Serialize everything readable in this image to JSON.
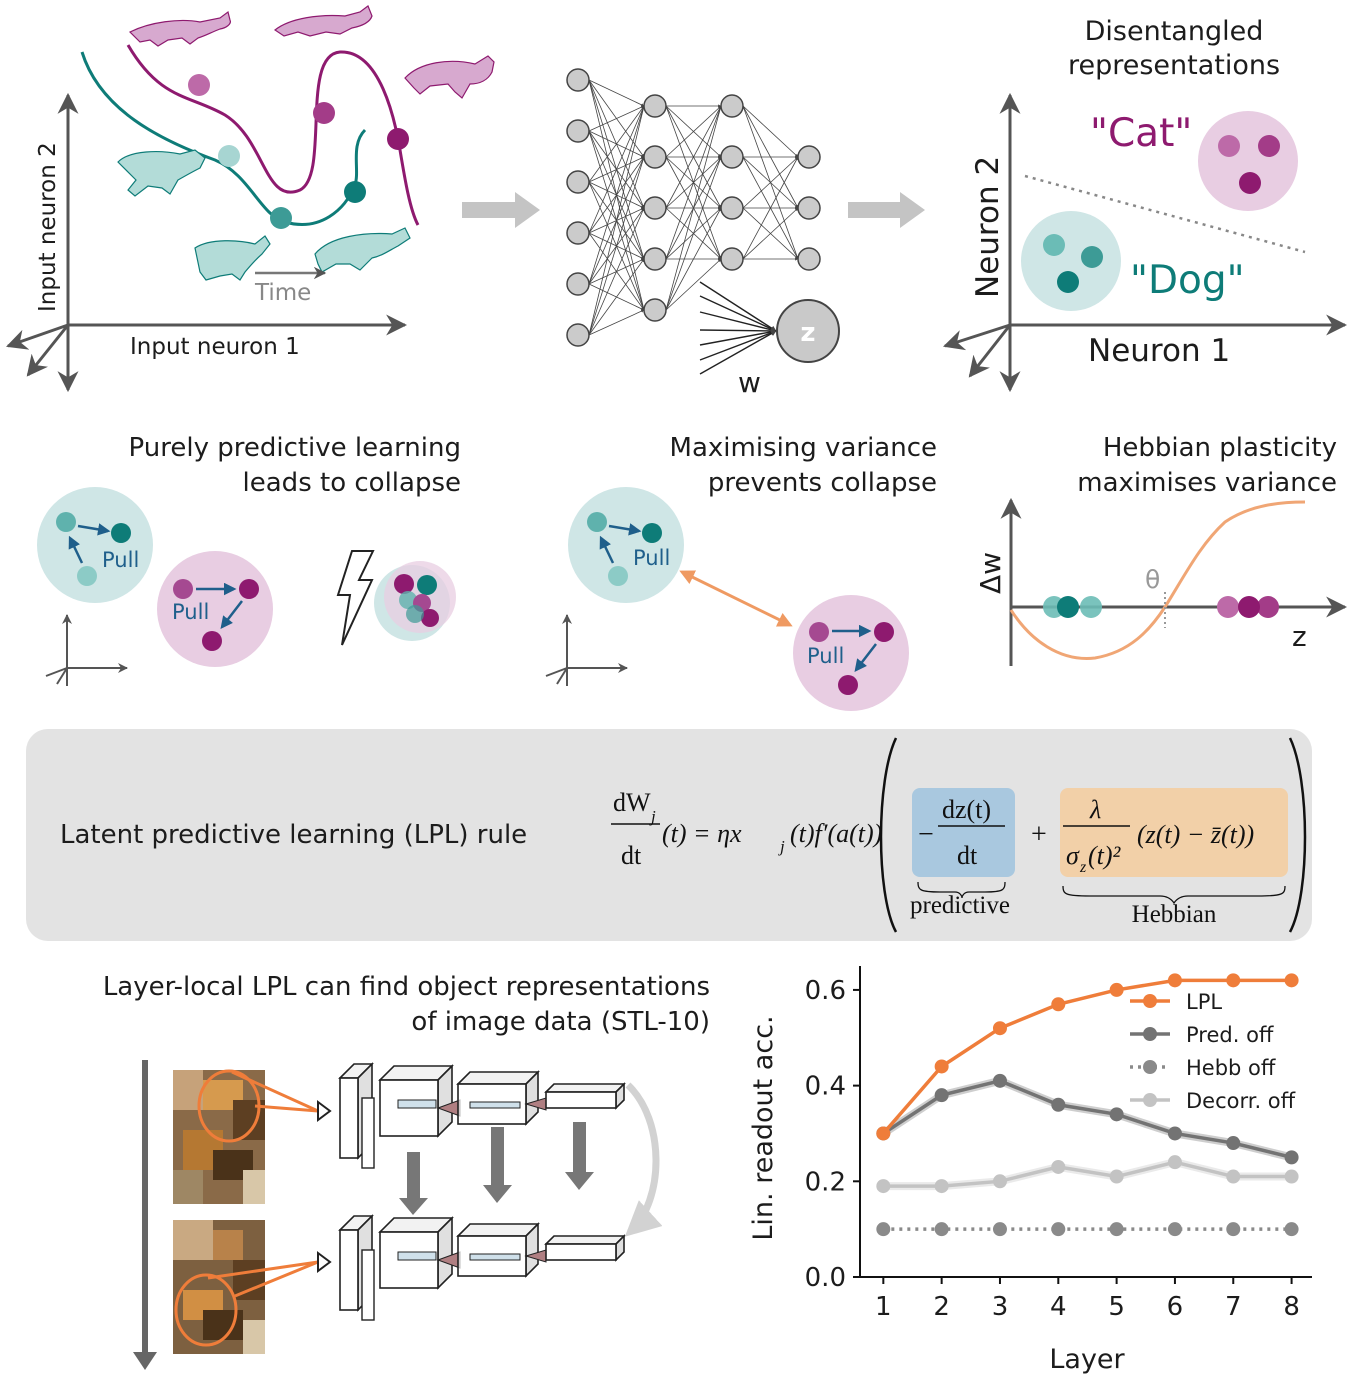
{
  "panel_a": {
    "ylabel": "Input neuron 2",
    "xlabel": "Input neuron 1",
    "time_label": "Time"
  },
  "panel_b": {
    "z_label": "z",
    "w_label": "w"
  },
  "panel_c": {
    "title_line1": "Disentangled",
    "title_line2": "representations",
    "cat_label": "\"Cat\"",
    "dog_label": "\"Dog\"",
    "ylabel": "Neuron 2",
    "xlabel": "Neuron 1"
  },
  "panel_d": {
    "title_line1": "Purely predictive learning",
    "title_line2": "leads to collapse",
    "pull_label": "Pull"
  },
  "panel_e": {
    "title_line1": "Maximising variance",
    "title_line2": "prevents collapse",
    "pull_label": "Pull"
  },
  "panel_f": {
    "title_line1": "Hebbian plasticity",
    "title_line2": "maximises variance",
    "ylabel": "Δw",
    "xlabel": "z",
    "theta_label": "θ"
  },
  "equation": {
    "label": "Latent predictive learning (LPL) rule",
    "lhs_num": "dW",
    "lhs_num_sub": "j",
    "lhs_den": "dt",
    "lhs_rest": "(t) = ηx",
    "rhs_sub": "j",
    "rhs_rest": "(t)f′(a(t))",
    "pred_num": "dz(t)",
    "pred_den": "dt",
    "minus": "−",
    "plus": "+",
    "hebb_num": "λ",
    "hebb_den": "σ",
    "hebb_den_sub": "z",
    "hebb_den_rest": "(t)²",
    "hebb_term": "(z(t) − z̄(t))",
    "predictive_label": "predictive",
    "hebbian_label": "Hebbian",
    "colors": {
      "predictive": "#a9c8df",
      "hebbian": "#f2d0a8"
    }
  },
  "panel_g": {
    "title_line1": "Layer-local LPL can find object representations",
    "title_line2": "of image data (STL-10)"
  },
  "colors": {
    "teal": "#0e7c78",
    "teal_light": "#6bbcb6",
    "teal_bg": "#cfe6e6",
    "purple": "#8e1a6f",
    "purple_light": "#bd6aa8",
    "purple_bg": "#e8cde2",
    "orange": "#ef7d3a",
    "arrow_gray": "#555555",
    "pull_blue": "#1f5f8b"
  },
  "chart_data": {
    "type": "line",
    "x": [
      1,
      2,
      3,
      4,
      5,
      6,
      7,
      8
    ],
    "xlabel": "Layer",
    "ylabel": "Lin. readout acc.",
    "xlim": [
      0.6,
      8.35
    ],
    "ylim": [
      0.0,
      0.65
    ],
    "yticks": [
      0.0,
      0.2,
      0.4,
      0.6
    ],
    "ytick_labels": [
      "0.0",
      "0.2",
      "0.4",
      "0.6"
    ],
    "xtick_labels": [
      "1",
      "2",
      "3",
      "4",
      "5",
      "6",
      "7",
      "8"
    ],
    "legend_position": "top-right",
    "series": [
      {
        "name": "LPL",
        "values": [
          0.3,
          0.44,
          0.52,
          0.57,
          0.6,
          0.62,
          0.62,
          0.62
        ],
        "color": "#ef7d3a",
        "style": "solid"
      },
      {
        "name": "Pred. off",
        "values": [
          0.3,
          0.38,
          0.41,
          0.36,
          0.34,
          0.3,
          0.28,
          0.25
        ],
        "color": "#737373",
        "style": "solid"
      },
      {
        "name": "Hebb off",
        "values": [
          0.1,
          0.1,
          0.1,
          0.1,
          0.1,
          0.1,
          0.1,
          0.1
        ],
        "color": "#8a8a8a",
        "style": "dotted"
      },
      {
        "name": "Decorr. off",
        "values": [
          0.19,
          0.19,
          0.2,
          0.23,
          0.21,
          0.24,
          0.21,
          0.21
        ],
        "color": "#c3c3c3",
        "style": "solid"
      }
    ]
  }
}
